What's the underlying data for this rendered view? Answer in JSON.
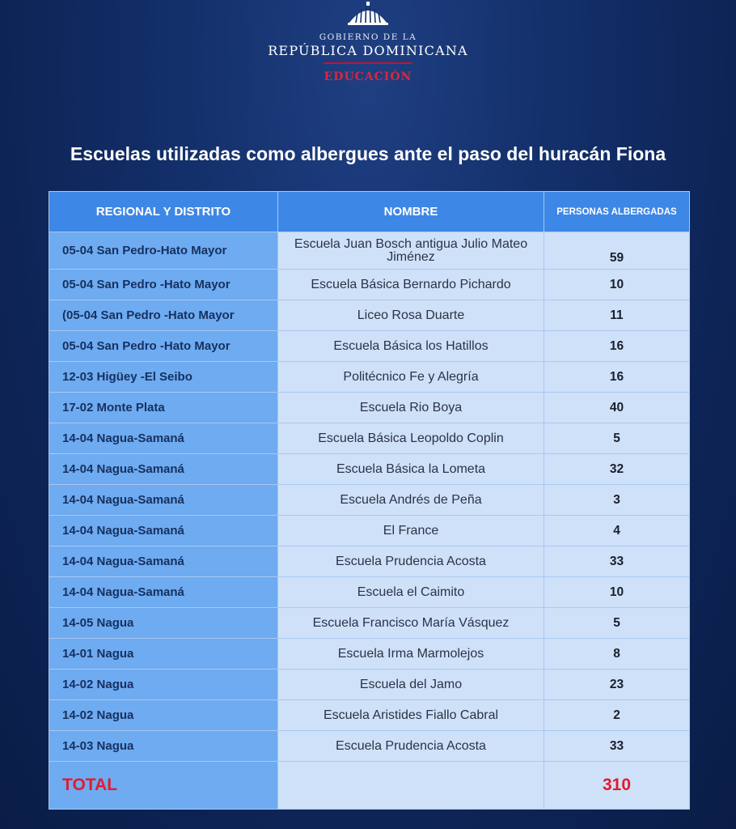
{
  "header": {
    "line1": "GOBIERNO DE LA",
    "line2": "REPÚBLICA DOMINICANA",
    "line3": "EDUCACIÓN",
    "logo_icon": "dome-icon"
  },
  "title": "Escuelas utilizadas como albergues ante el paso del huracán Fiona",
  "table": {
    "headers": [
      "REGIONAL Y DISTRITO",
      "NOMBRE",
      "PERSONAS ALBERGADAS"
    ],
    "rows": [
      {
        "regional": "05-04 San Pedro-Hato Mayor",
        "nombre": "Escuela Juan Bosch antigua Julio Mateo Jiménez",
        "personas": "59"
      },
      {
        "regional": "05-04 San Pedro -Hato Mayor",
        "nombre": "Escuela Básica Bernardo Pichardo",
        "personas": "10"
      },
      {
        "regional": "(05-04 San Pedro -Hato Mayor",
        "nombre": "Liceo Rosa Duarte",
        "personas": "11"
      },
      {
        "regional": "05-04 San Pedro -Hato Mayor",
        "nombre": "Escuela Básica los Hatillos",
        "personas": "16"
      },
      {
        "regional": "12-03 Higüey -El Seibo",
        "nombre": "Politécnico Fe y Alegría",
        "personas": "16"
      },
      {
        "regional": "17-02 Monte Plata",
        "nombre": "Escuela Rio Boya",
        "personas": "40"
      },
      {
        "regional": "14-04 Nagua-Samaná",
        "nombre": "Escuela Básica Leopoldo Coplin",
        "personas": "5"
      },
      {
        "regional": "14-04 Nagua-Samaná",
        "nombre": "Escuela Básica la Lometa",
        "personas": "32"
      },
      {
        "regional": "14-04 Nagua-Samaná",
        "nombre": "Escuela Andrés de Peña",
        "personas": "3"
      },
      {
        "regional": "14-04 Nagua-Samaná",
        "nombre": "El France",
        "personas": "4"
      },
      {
        "regional": "14-04 Nagua-Samaná",
        "nombre": "Escuela Prudencia Acosta",
        "personas": "33"
      },
      {
        "regional": "14-04 Nagua-Samaná",
        "nombre": "Escuela el Caimito",
        "personas": "10"
      },
      {
        "regional": "14-05 Nagua",
        "nombre": "Escuela Francisco María Vásquez",
        "personas": "5"
      },
      {
        "regional": "14-01 Nagua",
        "nombre": "Escuela Irma Marmolejos",
        "personas": "8"
      },
      {
        "regional": "14-02 Nagua",
        "nombre": "Escuela del Jamo",
        "personas": "23"
      },
      {
        "regional": "14-02 Nagua",
        "nombre": "Escuela Aristides Fiallo Cabral",
        "personas": "2"
      },
      {
        "regional": "14-03 Nagua",
        "nombre": "Escuela Prudencia Acosta",
        "personas": "33"
      }
    ],
    "total_label": "TOTAL",
    "total_value": "310"
  },
  "colors": {
    "background": "#0d2456",
    "header_blue": "#3d87e6",
    "regional_blue": "#6eabf1",
    "cell_light": "#cfe1f8",
    "total_red": "#e21b2d",
    "accent_red": "#c8102e"
  }
}
